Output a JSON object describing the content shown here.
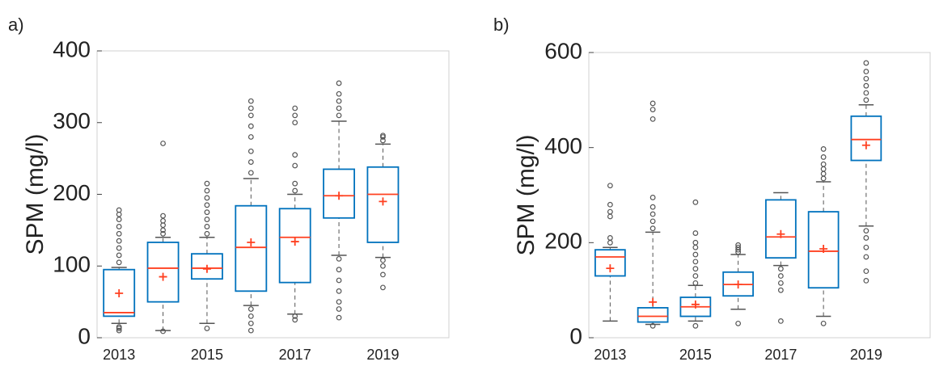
{
  "chart_data": [
    {
      "type": "box",
      "panel_label": "a)",
      "ylabel": "SPM (mg/l)",
      "x": [
        2013,
        2014,
        2015,
        2016,
        2017,
        2018,
        2019
      ],
      "xlim": [
        2012.5,
        2020.5
      ],
      "xticks": [
        2013,
        2015,
        2017,
        2019
      ],
      "ylim": [
        0,
        400
      ],
      "yticks": [
        0,
        100,
        200,
        300,
        400
      ],
      "box_color": "#0072bd",
      "median_color": "#ff4020",
      "mean_color": "#ff4020",
      "whisker_color": "#555555",
      "flier_color": "#555555",
      "boxes": [
        {
          "whislo": 20,
          "q1": 30,
          "med": 35,
          "q3": 95,
          "whishi": 98,
          "mean": 62,
          "fliers": [
            10,
            13,
            15,
            105,
            115,
            125,
            135,
            145,
            155,
            165,
            172,
            178
          ]
        },
        {
          "whislo": 10,
          "q1": 50,
          "med": 97,
          "q3": 133,
          "whishi": 140,
          "mean": 85,
          "fliers": [
            9,
            145,
            150,
            157,
            163,
            170,
            271
          ]
        },
        {
          "whislo": 20,
          "q1": 82,
          "med": 97,
          "q3": 117,
          "whishi": 140,
          "mean": 96,
          "fliers": [
            13,
            145,
            155,
            165,
            175,
            185,
            195,
            205,
            215
          ]
        },
        {
          "whislo": 45,
          "q1": 65,
          "med": 126,
          "q3": 184,
          "whishi": 222,
          "mean": 133,
          "fliers": [
            10,
            20,
            30,
            40,
            230,
            245,
            260,
            280,
            295,
            310,
            320,
            330
          ]
        },
        {
          "whislo": 33,
          "q1": 77,
          "med": 140,
          "q3": 180,
          "whishi": 200,
          "mean": 134,
          "fliers": [
            25,
            30,
            205,
            215,
            240,
            255,
            300,
            310,
            320
          ]
        },
        {
          "whislo": 115,
          "q1": 167,
          "med": 198,
          "q3": 235,
          "whishi": 302,
          "mean": 198,
          "fliers": [
            28,
            40,
            50,
            65,
            80,
            95,
            110,
            310,
            320,
            330,
            340,
            355
          ]
        },
        {
          "whislo": 112,
          "q1": 133,
          "med": 200,
          "q3": 238,
          "whishi": 270,
          "mean": 190,
          "fliers": [
            70,
            88,
            100,
            108,
            275,
            280,
            282
          ]
        }
      ]
    },
    {
      "type": "box",
      "panel_label": "b)",
      "ylabel": "SPM (mg/l)",
      "x": [
        2013,
        2014,
        2015,
        2016,
        2017,
        2018,
        2019
      ],
      "xlim": [
        2012.5,
        2020.5
      ],
      "xticks": [
        2013,
        2015,
        2017,
        2019
      ],
      "ylim": [
        0,
        600
      ],
      "yticks": [
        0,
        200,
        400,
        600
      ],
      "box_color": "#0072bd",
      "median_color": "#ff4020",
      "mean_color": "#ff4020",
      "whisker_color": "#555555",
      "flier_color": "#555555",
      "boxes": [
        {
          "whislo": 35,
          "q1": 130,
          "med": 170,
          "q3": 185,
          "whishi": 190,
          "mean": 146,
          "fliers": [
            200,
            210,
            255,
            265,
            280,
            320
          ]
        },
        {
          "whislo": 28,
          "q1": 33,
          "med": 45,
          "q3": 63,
          "whishi": 222,
          "mean": 75,
          "fliers": [
            25,
            230,
            245,
            260,
            275,
            295,
            460,
            480,
            493
          ]
        },
        {
          "whislo": 35,
          "q1": 45,
          "med": 65,
          "q3": 85,
          "whishi": 110,
          "mean": 70,
          "fliers": [
            25,
            115,
            130,
            145,
            160,
            175,
            190,
            200,
            220,
            285
          ]
        },
        {
          "whislo": 60,
          "q1": 88,
          "med": 112,
          "q3": 138,
          "whishi": 175,
          "mean": 112,
          "fliers": [
            30,
            180,
            185,
            190,
            195
          ]
        },
        {
          "whislo": 152,
          "q1": 168,
          "med": 212,
          "q3": 290,
          "whishi": 305,
          "mean": 218,
          "fliers": [
            35,
            100,
            115,
            130,
            145
          ]
        },
        {
          "whislo": 45,
          "q1": 105,
          "med": 182,
          "q3": 265,
          "whishi": 328,
          "mean": 187,
          "fliers": [
            30,
            335,
            345,
            355,
            365,
            380,
            397
          ]
        },
        {
          "whislo": 235,
          "q1": 373,
          "med": 417,
          "q3": 466,
          "whishi": 490,
          "mean": 405,
          "fliers": [
            120,
            140,
            170,
            190,
            210,
            225,
            500,
            515,
            530,
            545,
            560,
            578
          ]
        }
      ]
    }
  ]
}
